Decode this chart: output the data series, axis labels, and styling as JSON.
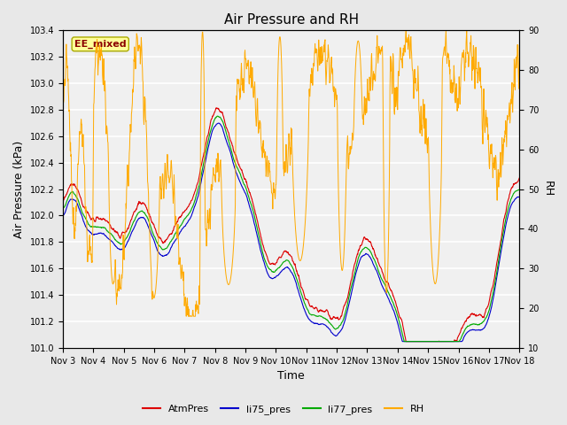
{
  "title": "Air Pressure and RH",
  "ylabel_left": "Air Pressure (kPa)",
  "ylabel_right": "RH",
  "xlabel": "Time",
  "annotation": "EE_mixed",
  "ylim_left": [
    101.0,
    103.4
  ],
  "ylim_right": [
    10,
    90
  ],
  "yticks_left": [
    101.0,
    101.2,
    101.4,
    101.6,
    101.8,
    102.0,
    102.2,
    102.4,
    102.6,
    102.8,
    103.0,
    103.2,
    103.4
  ],
  "yticks_right": [
    10,
    20,
    30,
    40,
    50,
    60,
    70,
    80,
    90
  ],
  "color_atm": "#dd0000",
  "color_li75": "#0000cc",
  "color_li77": "#00aa00",
  "color_rh": "#ffaa00",
  "bg_color": "#e8e8e8",
  "plot_bg": "#f0f0f0",
  "legend_entries": [
    "AtmPres",
    "li75_pres",
    "li77_pres",
    "RH"
  ],
  "num_days": 15,
  "num_points": 1500
}
